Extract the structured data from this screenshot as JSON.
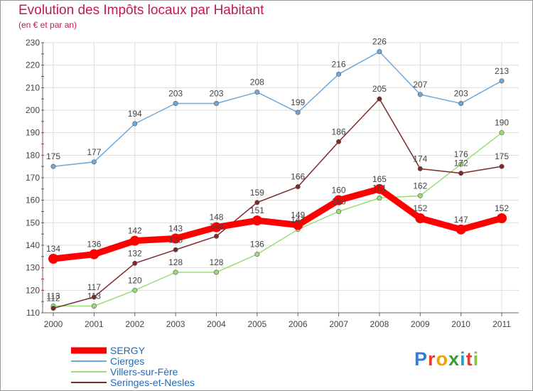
{
  "chart_data": {
    "type": "line",
    "title": "Evolution des Impôts locaux par Habitant",
    "subtitle": "(en € et par an)",
    "xlabel": "",
    "ylabel": "",
    "ylim": [
      110,
      230
    ],
    "yticks": [
      110,
      120,
      130,
      140,
      150,
      160,
      170,
      180,
      190,
      200,
      210,
      220,
      230
    ],
    "grid": true,
    "categories": [
      "2000",
      "2001",
      "2002",
      "2003",
      "2004",
      "2005",
      "2006",
      "2007",
      "2008",
      "2009",
      "2010",
      "2011"
    ],
    "series": [
      {
        "name": "SERGY",
        "color": "#ff0000",
        "values": [
          134,
          136,
          142,
          143,
          148,
          151,
          149,
          160,
          165,
          152,
          147,
          152
        ]
      },
      {
        "name": "Cierges",
        "color": "#6fa8d9",
        "values": [
          175,
          177,
          194,
          203,
          203,
          208,
          199,
          216,
          226,
          207,
          203,
          213
        ]
      },
      {
        "name": "Villers-sur-Fère",
        "color": "#99dd77",
        "values": [
          113,
          113,
          120,
          128,
          128,
          136,
          147,
          155,
          161,
          162,
          176,
          190
        ]
      },
      {
        "name": "Seringes-et-Nesles",
        "color": "#7b2a2a",
        "values": [
          112,
          117,
          132,
          138,
          144,
          159,
          166,
          186,
          205,
          174,
          172,
          175
        ]
      }
    ]
  },
  "brand": {
    "name": "Proxiti"
  },
  "colors": {
    "title": "#c2185b",
    "axis": "#666666",
    "grid": "#dddddd"
  }
}
